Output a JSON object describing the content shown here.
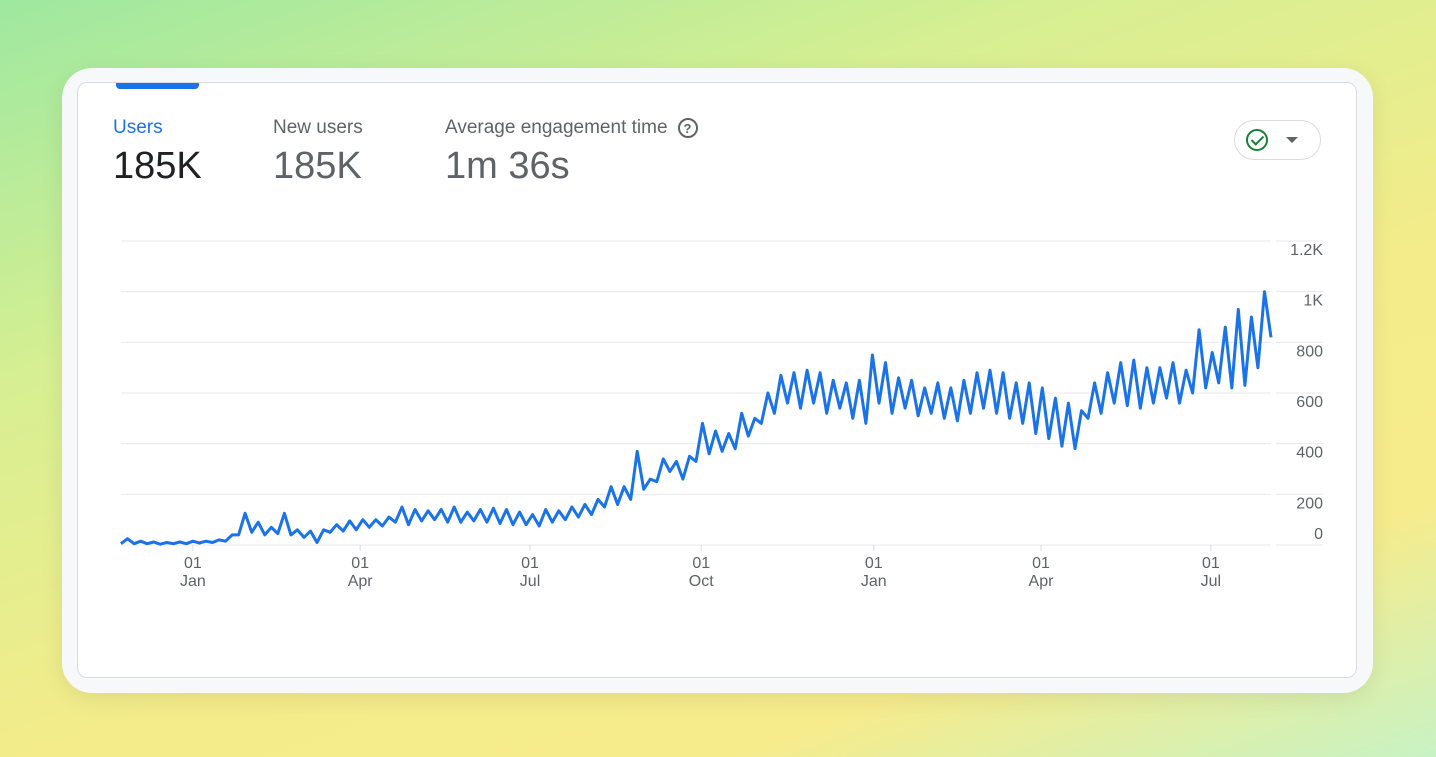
{
  "metrics": [
    {
      "label": "Users",
      "value": "185K",
      "active": true
    },
    {
      "label": "New users",
      "value": "185K",
      "active": false
    },
    {
      "label": "Average engagement time",
      "value": "1m 36s",
      "active": false,
      "help_icon": "help-circle-icon"
    }
  ],
  "compare_button": {
    "icon": "check-circle-icon",
    "dropdown_icon": "caret-down-icon",
    "status_color": "#188038"
  },
  "colors": {
    "accent": "#1a73e8",
    "line": "#1a73e8",
    "grid": "#e8eaed"
  },
  "chart_data": {
    "type": "line",
    "title": "",
    "xlabel": "",
    "ylabel": "Users",
    "ylim": [
      0,
      1200
    ],
    "y_ticks": [
      {
        "value": 0,
        "label": "0"
      },
      {
        "value": 200,
        "label": "200"
      },
      {
        "value": 400,
        "label": "400"
      },
      {
        "value": 600,
        "label": "600"
      },
      {
        "value": 800,
        "label": "800"
      },
      {
        "value": 1000,
        "label": "1K"
      },
      {
        "value": 1200,
        "label": "1.2K"
      }
    ],
    "x_unit": "weeks (half-week samples)",
    "xlim": [
      0,
      88
    ],
    "x_ticks": [
      {
        "week": 5.5,
        "day": "01",
        "month": "Jan"
      },
      {
        "week": 18.3,
        "day": "01",
        "month": "Apr"
      },
      {
        "week": 31.3,
        "day": "01",
        "month": "Jul"
      },
      {
        "week": 44.4,
        "day": "01",
        "month": "Oct"
      },
      {
        "week": 57.6,
        "day": "01",
        "month": "Jan"
      },
      {
        "week": 70.4,
        "day": "01",
        "month": "Apr"
      },
      {
        "week": 83.4,
        "day": "01",
        "month": "Jul"
      }
    ],
    "series": [
      {
        "name": "Users",
        "values": [
          5,
          25,
          5,
          15,
          5,
          12,
          3,
          10,
          5,
          12,
          5,
          15,
          8,
          15,
          10,
          20,
          15,
          40,
          40,
          125,
          50,
          90,
          40,
          70,
          45,
          125,
          40,
          60,
          30,
          55,
          10,
          60,
          50,
          80,
          55,
          95,
          60,
          100,
          70,
          100,
          75,
          110,
          90,
          150,
          80,
          140,
          95,
          135,
          100,
          140,
          90,
          150,
          90,
          130,
          95,
          140,
          90,
          145,
          85,
          140,
          80,
          130,
          80,
          120,
          75,
          140,
          90,
          135,
          100,
          150,
          110,
          160,
          120,
          180,
          150,
          230,
          160,
          230,
          180,
          370,
          220,
          260,
          250,
          340,
          290,
          330,
          260,
          350,
          330,
          480,
          360,
          450,
          370,
          440,
          380,
          520,
          430,
          500,
          480,
          600,
          520,
          670,
          560,
          680,
          540,
          690,
          560,
          680,
          520,
          650,
          540,
          640,
          500,
          650,
          480,
          750,
          560,
          720,
          520,
          660,
          540,
          650,
          510,
          620,
          520,
          640,
          500,
          620,
          490,
          650,
          520,
          680,
          540,
          690,
          520,
          680,
          500,
          640,
          480,
          640,
          440,
          620,
          420,
          580,
          390,
          560,
          380,
          530,
          500,
          640,
          520,
          680,
          560,
          720,
          550,
          730,
          540,
          700,
          560,
          700,
          580,
          720,
          560,
          690,
          600,
          850,
          620,
          760,
          640,
          860,
          620,
          930,
          630,
          900,
          700,
          1000,
          820
        ]
      }
    ]
  }
}
